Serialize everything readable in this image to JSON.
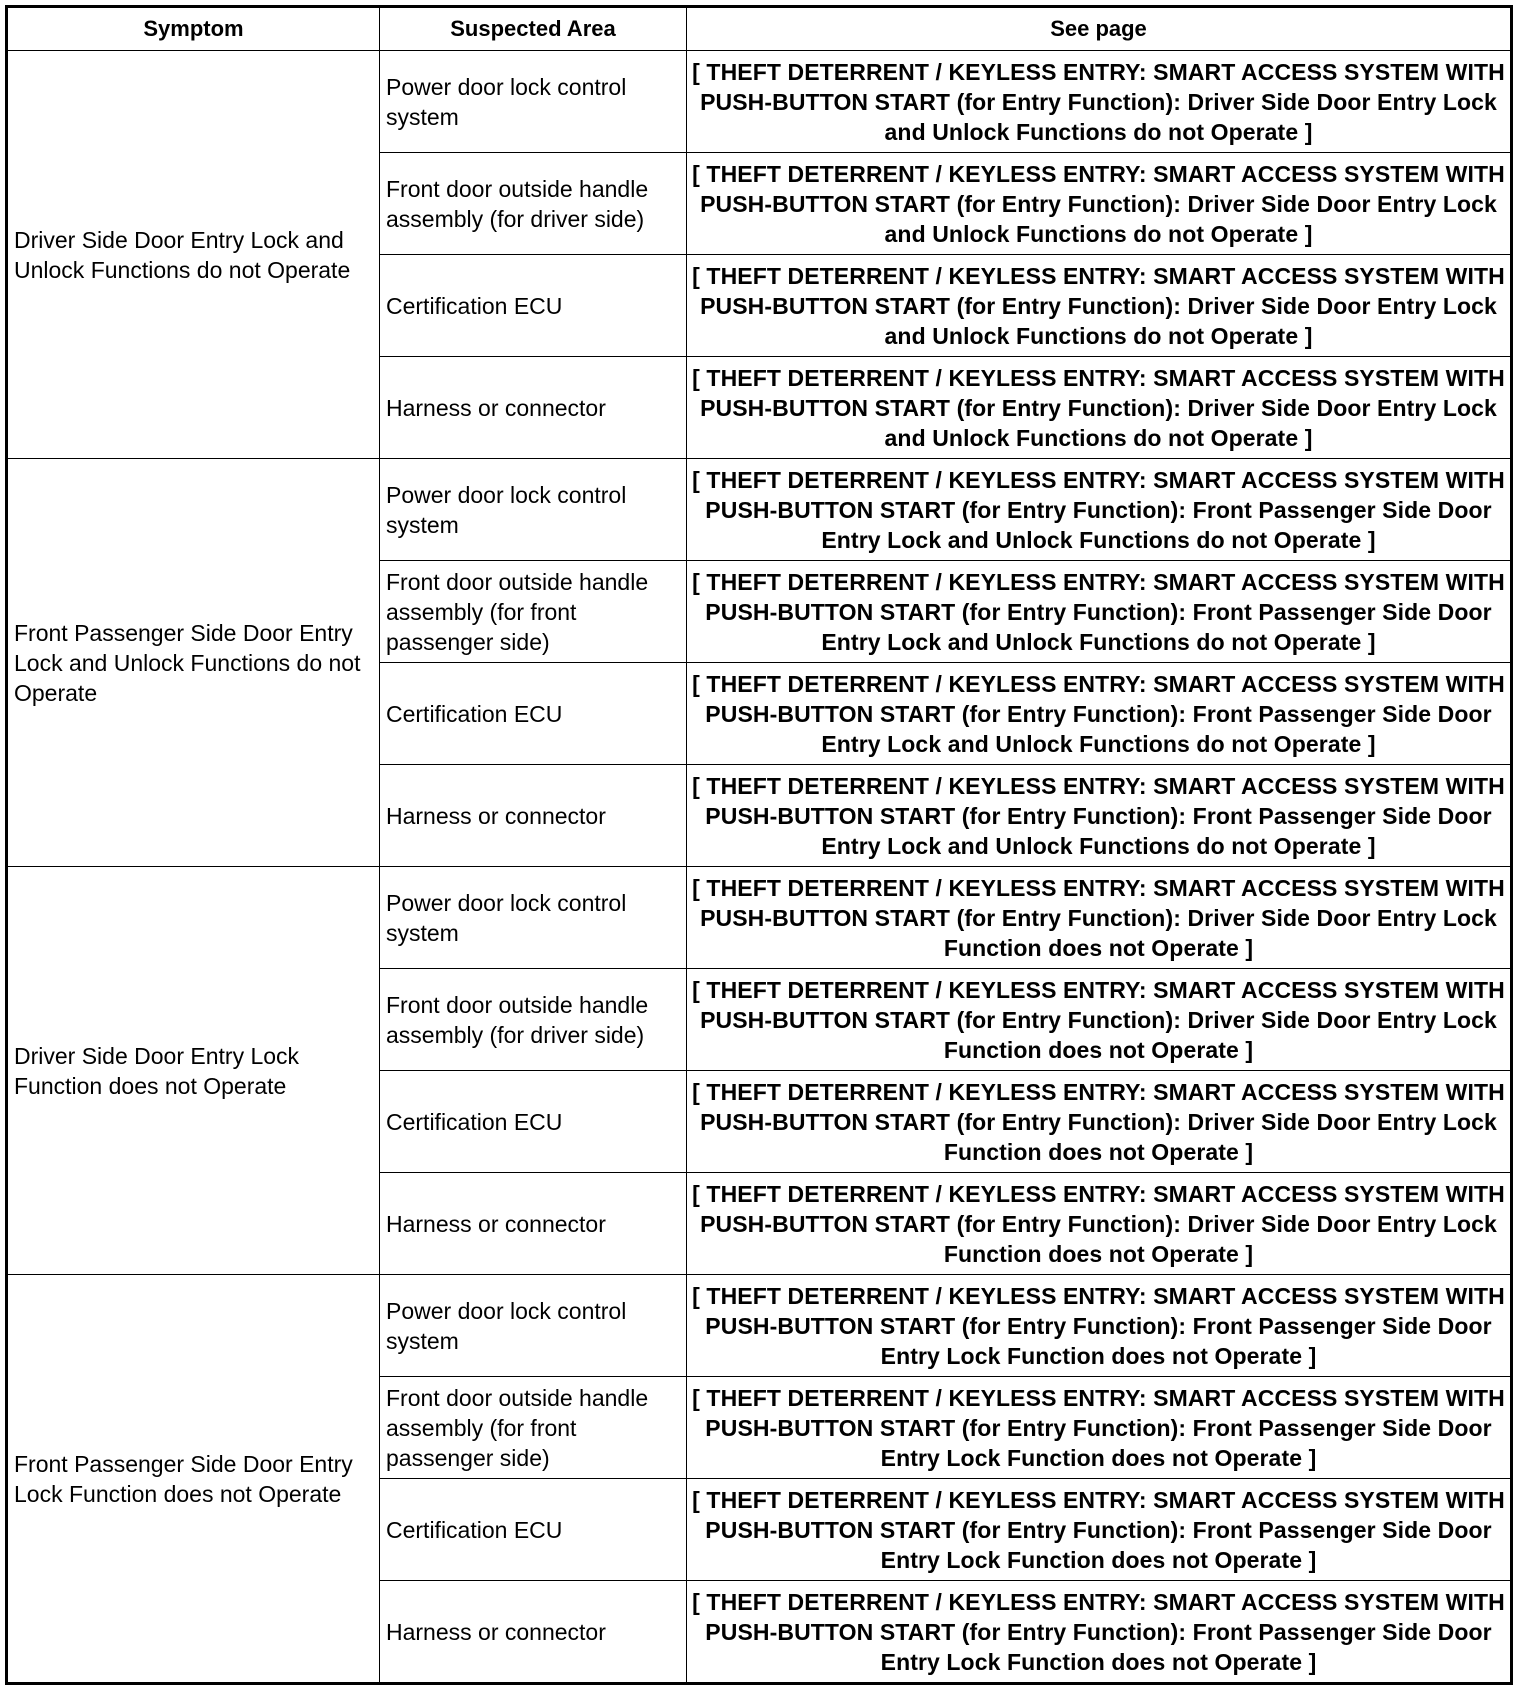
{
  "headers": [
    "Symptom",
    "Suspected Area",
    "See page"
  ],
  "groups": [
    {
      "symptom": "Driver Side Door Entry Lock and Unlock Functions do not Operate",
      "rows": [
        {
          "area": "Power door lock control system",
          "page": "[ THEFT DETERRENT / KEYLESS ENTRY: SMART ACCESS SYSTEM WITH PUSH-BUTTON START (for Entry Function): Driver Side Door Entry Lock and Unlock Functions do not Operate ]"
        },
        {
          "area": "Front door outside handle assembly (for driver side)",
          "page": "[ THEFT DETERRENT / KEYLESS ENTRY: SMART ACCESS SYSTEM WITH PUSH-BUTTON START (for Entry Function): Driver Side Door Entry Lock and Unlock Functions do not Operate ]"
        },
        {
          "area": "Certification ECU",
          "page": "[ THEFT DETERRENT / KEYLESS ENTRY: SMART ACCESS SYSTEM WITH PUSH-BUTTON START (for Entry Function): Driver Side Door Entry Lock and Unlock Functions do not Operate ]"
        },
        {
          "area": "Harness or connector",
          "page": "[ THEFT DETERRENT / KEYLESS ENTRY: SMART ACCESS SYSTEM WITH PUSH-BUTTON START (for Entry Function): Driver Side Door Entry Lock and Unlock Functions do not Operate ]"
        }
      ]
    },
    {
      "symptom": "Front Passenger Side Door Entry Lock and Unlock Functions do not Operate",
      "rows": [
        {
          "area": "Power door lock control system",
          "page": "[ THEFT DETERRENT / KEYLESS ENTRY: SMART ACCESS SYSTEM WITH PUSH-BUTTON START (for Entry Function): Front Passenger Side Door Entry Lock and Unlock Functions do not Operate ]"
        },
        {
          "area": "Front door outside handle assembly (for front passenger side)",
          "page": "[ THEFT DETERRENT / KEYLESS ENTRY: SMART ACCESS SYSTEM WITH PUSH-BUTTON START (for Entry Function): Front Passenger Side Door Entry Lock and Unlock Functions do not Operate ]"
        },
        {
          "area": "Certification ECU",
          "page": "[ THEFT DETERRENT / KEYLESS ENTRY: SMART ACCESS SYSTEM WITH PUSH-BUTTON START (for Entry Function): Front Passenger Side Door Entry Lock and Unlock Functions do not Operate ]"
        },
        {
          "area": "Harness or connector",
          "page": "[ THEFT DETERRENT / KEYLESS ENTRY: SMART ACCESS SYSTEM WITH PUSH-BUTTON START (for Entry Function): Front Passenger Side Door Entry Lock and Unlock Functions do not Operate ]"
        }
      ]
    },
    {
      "symptom": "Driver Side Door Entry Lock Function does not Operate",
      "rows": [
        {
          "area": "Power door lock control system",
          "page": "[ THEFT DETERRENT / KEYLESS ENTRY: SMART ACCESS SYSTEM WITH PUSH-BUTTON START (for Entry Function): Driver Side Door Entry Lock Function does not Operate ]"
        },
        {
          "area": "Front door outside handle assembly (for driver side)",
          "page": "[ THEFT DETERRENT / KEYLESS ENTRY: SMART ACCESS SYSTEM WITH PUSH-BUTTON START (for Entry Function): Driver Side Door Entry Lock Function does not Operate ]"
        },
        {
          "area": "Certification ECU",
          "page": "[ THEFT DETERRENT / KEYLESS ENTRY: SMART ACCESS SYSTEM WITH PUSH-BUTTON START (for Entry Function): Driver Side Door Entry Lock Function does not Operate ]"
        },
        {
          "area": "Harness or connector",
          "page": "[ THEFT DETERRENT / KEYLESS ENTRY: SMART ACCESS SYSTEM WITH PUSH-BUTTON START (for Entry Function): Driver Side Door Entry Lock Function does not Operate ]"
        }
      ]
    },
    {
      "symptom": "Front Passenger Side Door Entry Lock Function does not Operate",
      "rows": [
        {
          "area": "Power door lock control system",
          "page": "[ THEFT DETERRENT / KEYLESS ENTRY: SMART ACCESS SYSTEM WITH PUSH-BUTTON START (for Entry Function): Front Passenger Side Door Entry Lock Function does not Operate ]"
        },
        {
          "area": "Front door outside handle assembly (for front passenger side)",
          "page": "[ THEFT DETERRENT / KEYLESS ENTRY: SMART ACCESS SYSTEM WITH PUSH-BUTTON START (for Entry Function): Front Passenger Side Door Entry Lock Function does not Operate ]"
        },
        {
          "area": "Certification ECU",
          "page": "[ THEFT DETERRENT / KEYLESS ENTRY: SMART ACCESS SYSTEM WITH PUSH-BUTTON START (for Entry Function): Front Passenger Side Door Entry Lock Function does not Operate ]"
        },
        {
          "area": "Harness or connector",
          "page": "[ THEFT DETERRENT / KEYLESS ENTRY: SMART ACCESS SYSTEM WITH PUSH-BUTTON START (for Entry Function): Front Passenger Side Door Entry Lock Function does not Operate ]"
        }
      ]
    }
  ]
}
